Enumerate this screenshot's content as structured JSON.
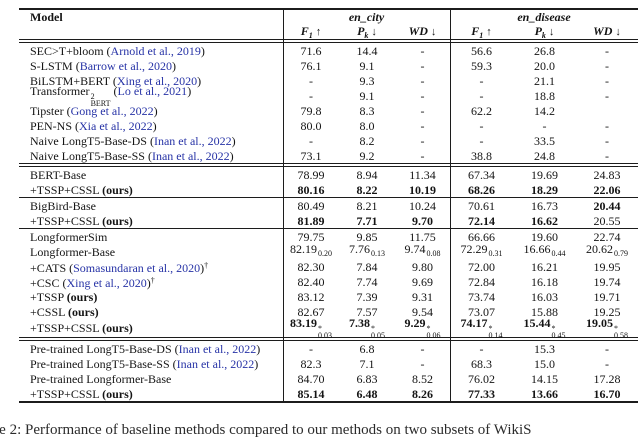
{
  "colors": {
    "link_blue": "#2733a6",
    "text": "#141414",
    "rule": "#1c1c1c"
  },
  "caption": {
    "fragment": "le 2: Performance of baseline methods compared to our methods on two subsets of WikiS"
  },
  "table": {
    "model_header": "Model",
    "datasets": [
      {
        "label": "en_city"
      },
      {
        "label": "en_disease"
      }
    ],
    "metrics": [
      {
        "base": "F",
        "sub": "1",
        "arrow": "↑"
      },
      {
        "base": "P",
        "sub": "k",
        "arrow": "↓"
      },
      {
        "base": "WD",
        "sub": "",
        "arrow": "↓"
      }
    ],
    "groups": [
      {
        "separator_after": "double",
        "rows": [
          {
            "model": {
              "text": "SEC>T+bloom",
              "cite": "Arnold et al., 2019"
            },
            "cells": [
              "71.6",
              "14.4",
              "-",
              "56.6",
              "26.8",
              "-"
            ]
          },
          {
            "model": {
              "text": "S-LSTM",
              "cite": "Barrow et al., 2020"
            },
            "cells": [
              "76.1",
              "9.1",
              "-",
              "59.3",
              "20.0",
              "-"
            ]
          },
          {
            "model": {
              "text": "BiLSTM+BERT",
              "cite": "Xing et al., 2020"
            },
            "cells": [
              "-",
              "9.3",
              "-",
              "-",
              "21.1",
              "-"
            ]
          },
          {
            "model": {
              "text": "Transformer",
              "supsub": {
                "sup": "2",
                "sub": "BERT"
              },
              "cite": "Lo et al., 2021"
            },
            "cells": [
              "-",
              "9.1",
              "-",
              "-",
              "18.8",
              "-"
            ]
          },
          {
            "model": {
              "text": "Tipster",
              "cite": "Gong et al., 2022"
            },
            "cells": [
              "79.8",
              "8.3",
              "-",
              "62.2",
              "14.2",
              ""
            ]
          },
          {
            "model": {
              "text": "PEN-NS",
              "cite": "Xia et al., 2022"
            },
            "cells": [
              "80.0",
              "8.0",
              "-",
              "-",
              "-",
              "-"
            ]
          },
          {
            "model": {
              "text": "Naive LongT5-Base-DS",
              "cite": "Inan et al., 2022"
            },
            "cells": [
              "-",
              "8.2",
              "-",
              "-",
              "33.5",
              "-"
            ]
          },
          {
            "model": {
              "text": "Naive LongT5-Base-SS",
              "cite": "Inan et al., 2022"
            },
            "cells": [
              "73.1",
              "9.2",
              "-",
              "38.8",
              "24.8",
              "-"
            ]
          }
        ]
      },
      {
        "separator_after": "thin",
        "rows": [
          {
            "model": {
              "text": "BERT-Base"
            },
            "cells": [
              "78.99",
              "8.94",
              "11.34",
              "67.34",
              "19.69",
              "24.83"
            ]
          },
          {
            "model": {
              "text": "+TSSP+CSSL",
              "ours": true
            },
            "cells": [
              {
                "v": "80.16",
                "bold": true
              },
              {
                "v": "8.22",
                "bold": true
              },
              {
                "v": "10.19",
                "bold": true
              },
              {
                "v": "68.26",
                "bold": true
              },
              {
                "v": "18.29",
                "bold": true
              },
              {
                "v": "22.06",
                "bold": true
              }
            ]
          }
        ]
      },
      {
        "separator_after": "thin",
        "rows": [
          {
            "model": {
              "text": "BigBird-Base"
            },
            "cells": [
              "80.49",
              "8.21",
              "10.24",
              "70.61",
              "16.73",
              {
                "v": "20.44",
                "bold": true
              }
            ]
          },
          {
            "model": {
              "text": "+TSSP+CSSL",
              "ours": true
            },
            "cells": [
              {
                "v": "81.89",
                "bold": true
              },
              {
                "v": "7.71",
                "bold": true
              },
              {
                "v": "9.70",
                "bold": true
              },
              {
                "v": "72.14",
                "bold": true
              },
              {
                "v": "16.62",
                "bold": true
              },
              "20.55"
            ]
          }
        ]
      },
      {
        "separator_after": "double",
        "rows": [
          {
            "model": {
              "text": "LongformerSim"
            },
            "cells": [
              "79.75",
              "9.85",
              "11.75",
              "66.66",
              "19.60",
              "22.74"
            ]
          },
          {
            "model": {
              "text": "Longformer-Base"
            },
            "cells": [
              {
                "v": "82.19",
                "sub": "0.20"
              },
              {
                "v": "7.76",
                "sub": "0.13"
              },
              {
                "v": "9.74",
                "sub": "0.08"
              },
              {
                "v": "72.29",
                "sub": "0.31"
              },
              {
                "v": "16.66",
                "sub": "0.44"
              },
              {
                "v": "20.62",
                "sub": "0.79"
              }
            ]
          },
          {
            "model": {
              "text": "+CATS",
              "cite": "Somasundaran et al., 2020",
              "dagger": true
            },
            "cells": [
              "82.30",
              "7.84",
              "9.80",
              "72.00",
              "16.21",
              "19.95"
            ]
          },
          {
            "model": {
              "text": "+CSC",
              "cite": "Xing et al., 2020",
              "dagger": true
            },
            "cells": [
              "82.40",
              "7.74",
              "9.69",
              "72.84",
              "16.18",
              "19.74"
            ]
          },
          {
            "model": {
              "text": "+TSSP",
              "ours": true
            },
            "cells": [
              "83.12",
              "7.39",
              "9.31",
              "73.74",
              "16.03",
              "19.71"
            ]
          },
          {
            "model": {
              "text": "+CSSL",
              "ours": true
            },
            "cells": [
              "82.67",
              "7.57",
              "9.54",
              "73.07",
              "15.88",
              "19.25"
            ]
          },
          {
            "model": {
              "text": "+TSSP+CSSL",
              "ours": true
            },
            "tall": true,
            "cells": [
              {
                "v": "83.19",
                "sup": "*",
                "sub": "0.03",
                "bold": true
              },
              {
                "v": "7.38",
                "sup": "*",
                "sub": "0.05",
                "bold": true
              },
              {
                "v": "9.29",
                "sup": "*",
                "sub": "0.06",
                "bold": true
              },
              {
                "v": "74.17",
                "sup": "*",
                "sub": "0.14",
                "bold": true
              },
              {
                "v": "15.44",
                "sup": "*",
                "sub": "0.45",
                "bold": true
              },
              {
                "v": "19.05",
                "sup": "*",
                "sub": "0.58",
                "bold": true
              }
            ]
          }
        ]
      },
      {
        "separator_after": "none",
        "rows": [
          {
            "model": {
              "text": "Pre-trained LongT5-Base-DS",
              "cite": "Inan et al., 2022"
            },
            "cells": [
              "-",
              "6.8",
              "-",
              "-",
              "15.3",
              "-"
            ]
          },
          {
            "model": {
              "text": "Pre-trained LongT5-Base-SS",
              "cite": "Inan et al., 2022"
            },
            "cells": [
              "82.3",
              "7.1",
              "-",
              "68.3",
              "15.0",
              "-"
            ]
          },
          {
            "model": {
              "text": "Pre-trained Longformer-Base"
            },
            "cells": [
              "84.70",
              "6.83",
              "8.52",
              "76.02",
              "14.15",
              "17.28"
            ]
          },
          {
            "model": {
              "text": "+TSSP+CSSL",
              "ours": true
            },
            "cells": [
              {
                "v": "85.14",
                "bold": true
              },
              {
                "v": "6.48",
                "bold": true
              },
              {
                "v": "8.26",
                "bold": true
              },
              {
                "v": "77.33",
                "bold": true
              },
              {
                "v": "13.66",
                "bold": true
              },
              {
                "v": "16.70",
                "bold": true
              }
            ]
          }
        ]
      }
    ]
  }
}
